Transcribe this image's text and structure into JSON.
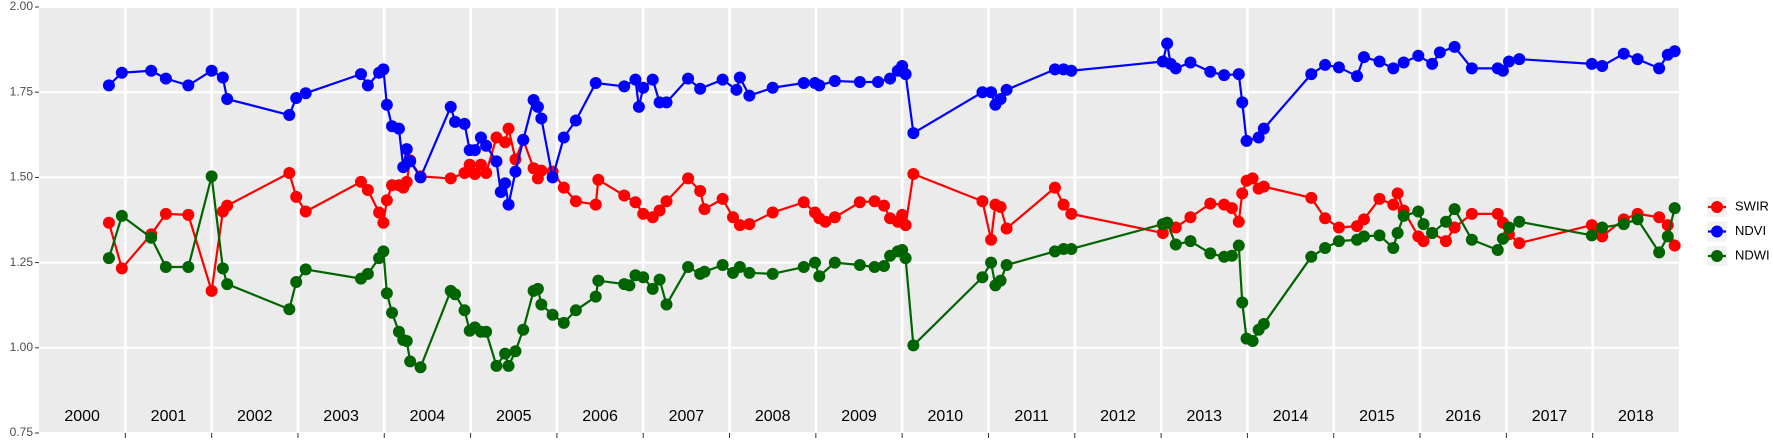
{
  "chart_data": {
    "type": "line",
    "categories": [
      "2000",
      "2001",
      "2002",
      "2003",
      "2004",
      "2005",
      "2006",
      "2007",
      "2008",
      "2009",
      "2010",
      "2011",
      "2012",
      "2013",
      "2014",
      "2015",
      "2016",
      "2017",
      "2018"
    ],
    "xlim": [
      2000,
      2019
    ],
    "xticks": [
      2001,
      2002,
      2003,
      2004,
      2005,
      2006,
      2007,
      2008,
      2009,
      2010,
      2011,
      2012,
      2013,
      2014,
      2015,
      2016,
      2017,
      2018
    ],
    "ylim": [
      0.75,
      2.0
    ],
    "yticks": [
      0.75,
      {
        "value": 1,
        "label": "1.00"
      },
      1.25,
      {
        "value": 1.5,
        "label": "1.50"
      },
      1.75,
      {
        "value": 2,
        "label": "2.00"
      }
    ],
    "grid": true,
    "legend": "right",
    "series": [
      {
        "name": "SWIR",
        "color": "#ff0000",
        "x": [
          2000.81,
          2000.96,
          2001.3,
          2001.47,
          2001.73,
          2002.0,
          2002.13,
          2002.18,
          2002.9,
          2002.98,
          2003.09,
          2003.73,
          2003.81,
          2003.94,
          2003.99,
          2004.03,
          2004.09,
          2004.17,
          2004.22,
          2004.26,
          2004.3,
          2004.42,
          2004.77,
          2004.93,
          2004.99,
          2005.05,
          2005.12,
          2005.18,
          2005.3,
          2005.4,
          2005.44,
          2005.52,
          2005.61,
          2005.73,
          2005.78,
          2005.82,
          2005.95,
          2006.08,
          2006.22,
          2006.45,
          2006.48,
          2006.78,
          2006.91,
          2007.0,
          2007.11,
          2007.19,
          2007.27,
          2007.52,
          2007.66,
          2007.71,
          2007.92,
          2008.04,
          2008.12,
          2008.23,
          2008.5,
          2008.86,
          2008.99,
          2009.04,
          2009.11,
          2009.22,
          2009.51,
          2009.68,
          2009.79,
          2009.86,
          2009.95,
          2010.0,
          2010.04,
          2010.13,
          2010.93,
          2011.03,
          2011.08,
          2011.14,
          2011.21,
          2011.77,
          2011.87,
          2011.96,
          2013.02,
          2013.07,
          2013.17,
          2013.34,
          2013.57,
          2013.73,
          2013.82,
          2013.9,
          2013.94,
          2013.99,
          2014.06,
          2014.13,
          2014.19,
          2014.74,
          2014.9,
          2015.06,
          2015.27,
          2015.35,
          2015.53,
          2015.69,
          2015.74,
          2015.81,
          2015.98,
          2016.04,
          2016.14,
          2016.3,
          2016.4,
          2016.6,
          2016.9,
          2016.96,
          2017.03,
          2017.15,
          2017.99,
          2018.11,
          2018.36,
          2018.52,
          2018.77,
          2018.87,
          2018.95
        ],
        "values": [
          1.367,
          1.233,
          1.333,
          1.393,
          1.39,
          1.167,
          1.4,
          1.417,
          1.513,
          1.443,
          1.4,
          1.487,
          1.463,
          1.397,
          1.367,
          1.433,
          1.477,
          1.477,
          1.47,
          1.487,
          1.55,
          1.503,
          1.497,
          1.513,
          1.537,
          1.51,
          1.537,
          1.513,
          1.617,
          1.603,
          1.643,
          1.553,
          1.61,
          1.527,
          1.497,
          1.52,
          1.517,
          1.47,
          1.43,
          1.42,
          1.493,
          1.447,
          1.427,
          1.393,
          1.383,
          1.403,
          1.43,
          1.497,
          1.46,
          1.407,
          1.437,
          1.383,
          1.36,
          1.363,
          1.397,
          1.427,
          1.397,
          1.38,
          1.37,
          1.383,
          1.427,
          1.43,
          1.417,
          1.38,
          1.37,
          1.39,
          1.36,
          1.51,
          1.43,
          1.317,
          1.42,
          1.413,
          1.35,
          1.47,
          1.42,
          1.393,
          1.337,
          1.367,
          1.353,
          1.383,
          1.423,
          1.42,
          1.41,
          1.37,
          1.453,
          1.49,
          1.497,
          1.467,
          1.473,
          1.44,
          1.38,
          1.353,
          1.357,
          1.377,
          1.437,
          1.42,
          1.453,
          1.403,
          1.327,
          1.313,
          1.337,
          1.313,
          1.353,
          1.393,
          1.393,
          1.367,
          1.333,
          1.307,
          1.36,
          1.327,
          1.377,
          1.393,
          1.383,
          1.36,
          1.3
        ]
      },
      {
        "name": "NDVI",
        "color": "#0000ff",
        "x": [
          2000.81,
          2000.96,
          2001.3,
          2001.47,
          2001.73,
          2002.0,
          2002.13,
          2002.18,
          2002.9,
          2002.98,
          2003.09,
          2003.73,
          2003.81,
          2003.94,
          2003.99,
          2004.03,
          2004.09,
          2004.17,
          2004.22,
          2004.26,
          2004.3,
          2004.42,
          2004.77,
          2004.82,
          2004.93,
          2004.99,
          2005.05,
          2005.12,
          2005.18,
          2005.3,
          2005.35,
          2005.4,
          2005.44,
          2005.52,
          2005.61,
          2005.73,
          2005.78,
          2005.82,
          2005.95,
          2006.08,
          2006.22,
          2006.45,
          2006.78,
          2006.91,
          2006.95,
          2007.0,
          2007.11,
          2007.19,
          2007.27,
          2007.52,
          2007.66,
          2007.92,
          2008.08,
          2008.12,
          2008.23,
          2008.5,
          2008.86,
          2008.99,
          2009.04,
          2009.22,
          2009.51,
          2009.72,
          2009.86,
          2009.95,
          2010.0,
          2010.04,
          2010.13,
          2010.93,
          2011.03,
          2011.08,
          2011.14,
          2011.21,
          2011.77,
          2011.87,
          2011.96,
          2013.02,
          2013.07,
          2013.11,
          2013.17,
          2013.34,
          2013.57,
          2013.73,
          2013.9,
          2013.94,
          2013.99,
          2014.13,
          2014.19,
          2014.74,
          2014.9,
          2015.06,
          2015.27,
          2015.35,
          2015.53,
          2015.69,
          2015.81,
          2015.98,
          2016.14,
          2016.23,
          2016.4,
          2016.6,
          2016.9,
          2016.96,
          2017.03,
          2017.15,
          2017.99,
          2018.11,
          2018.36,
          2018.52,
          2018.77,
          2018.87,
          2018.95
        ],
        "values": [
          1.77,
          1.807,
          1.813,
          1.79,
          1.77,
          1.813,
          1.793,
          1.73,
          1.683,
          1.733,
          1.747,
          1.803,
          1.77,
          1.807,
          1.817,
          1.713,
          1.65,
          1.643,
          1.53,
          1.583,
          1.547,
          1.5,
          1.707,
          1.663,
          1.657,
          1.58,
          1.58,
          1.617,
          1.593,
          1.547,
          1.457,
          1.483,
          1.42,
          1.517,
          1.61,
          1.727,
          1.707,
          1.673,
          1.5,
          1.617,
          1.667,
          1.777,
          1.767,
          1.787,
          1.707,
          1.763,
          1.787,
          1.72,
          1.72,
          1.79,
          1.76,
          1.787,
          1.757,
          1.793,
          1.74,
          1.763,
          1.777,
          1.777,
          1.77,
          1.783,
          1.78,
          1.78,
          1.79,
          1.813,
          1.827,
          1.803,
          1.63,
          1.75,
          1.75,
          1.713,
          1.73,
          1.757,
          1.817,
          1.817,
          1.813,
          1.84,
          1.893,
          1.833,
          1.82,
          1.837,
          1.81,
          1.8,
          1.803,
          1.72,
          1.607,
          1.617,
          1.643,
          1.803,
          1.83,
          1.823,
          1.797,
          1.853,
          1.84,
          1.82,
          1.837,
          1.857,
          1.833,
          1.867,
          1.883,
          1.82,
          1.82,
          1.813,
          1.84,
          1.847,
          1.833,
          1.827,
          1.863,
          1.847,
          1.82,
          1.86,
          1.87
        ]
      },
      {
        "name": "NDWI",
        "color": "#006400",
        "x": [
          2000.81,
          2000.96,
          2001.3,
          2001.47,
          2001.73,
          2002.0,
          2002.13,
          2002.18,
          2002.9,
          2002.98,
          2003.09,
          2003.73,
          2003.81,
          2003.94,
          2003.99,
          2004.03,
          2004.09,
          2004.17,
          2004.22,
          2004.26,
          2004.3,
          2004.42,
          2004.77,
          2004.82,
          2004.93,
          2004.99,
          2005.05,
          2005.12,
          2005.18,
          2005.3,
          2005.4,
          2005.44,
          2005.52,
          2005.61,
          2005.73,
          2005.78,
          2005.82,
          2005.95,
          2006.08,
          2006.22,
          2006.45,
          2006.48,
          2006.78,
          2006.84,
          2006.91,
          2007.0,
          2007.11,
          2007.19,
          2007.27,
          2007.52,
          2007.66,
          2007.71,
          2007.92,
          2008.04,
          2008.12,
          2008.23,
          2008.5,
          2008.86,
          2008.99,
          2009.04,
          2009.22,
          2009.51,
          2009.68,
          2009.79,
          2009.86,
          2009.95,
          2010.0,
          2010.04,
          2010.13,
          2010.93,
          2011.03,
          2011.08,
          2011.14,
          2011.21,
          2011.77,
          2011.87,
          2011.96,
          2013.02,
          2013.07,
          2013.17,
          2013.34,
          2013.57,
          2013.73,
          2013.82,
          2013.9,
          2013.94,
          2013.99,
          2014.06,
          2014.13,
          2014.19,
          2014.74,
          2014.9,
          2015.06,
          2015.27,
          2015.35,
          2015.53,
          2015.69,
          2015.74,
          2015.81,
          2015.98,
          2016.04,
          2016.14,
          2016.3,
          2016.4,
          2016.6,
          2016.9,
          2016.96,
          2017.03,
          2017.15,
          2017.99,
          2018.11,
          2018.36,
          2018.52,
          2018.77,
          2018.87,
          2018.95
        ],
        "values": [
          1.263,
          1.387,
          1.323,
          1.237,
          1.237,
          1.503,
          1.233,
          1.187,
          1.113,
          1.193,
          1.23,
          1.203,
          1.217,
          1.263,
          1.283,
          1.16,
          1.103,
          1.047,
          1.023,
          1.02,
          0.96,
          0.943,
          1.167,
          1.157,
          1.11,
          1.05,
          1.06,
          1.047,
          1.047,
          0.947,
          0.983,
          0.947,
          0.99,
          1.053,
          1.167,
          1.173,
          1.127,
          1.097,
          1.073,
          1.11,
          1.15,
          1.197,
          1.187,
          1.183,
          1.213,
          1.207,
          1.173,
          1.2,
          1.127,
          1.237,
          1.217,
          1.223,
          1.243,
          1.22,
          1.237,
          1.22,
          1.217,
          1.237,
          1.25,
          1.21,
          1.25,
          1.243,
          1.237,
          1.24,
          1.27,
          1.283,
          1.287,
          1.263,
          1.007,
          1.207,
          1.25,
          1.183,
          1.197,
          1.243,
          1.283,
          1.29,
          1.29,
          1.363,
          1.367,
          1.303,
          1.313,
          1.277,
          1.267,
          1.27,
          1.3,
          1.133,
          1.027,
          1.02,
          1.053,
          1.07,
          1.267,
          1.293,
          1.313,
          1.317,
          1.327,
          1.33,
          1.293,
          1.337,
          1.387,
          1.4,
          1.363,
          1.337,
          1.37,
          1.407,
          1.317,
          1.287,
          1.32,
          1.353,
          1.37,
          1.33,
          1.353,
          1.363,
          1.377,
          1.28,
          1.327,
          1.41
        ]
      }
    ]
  }
}
